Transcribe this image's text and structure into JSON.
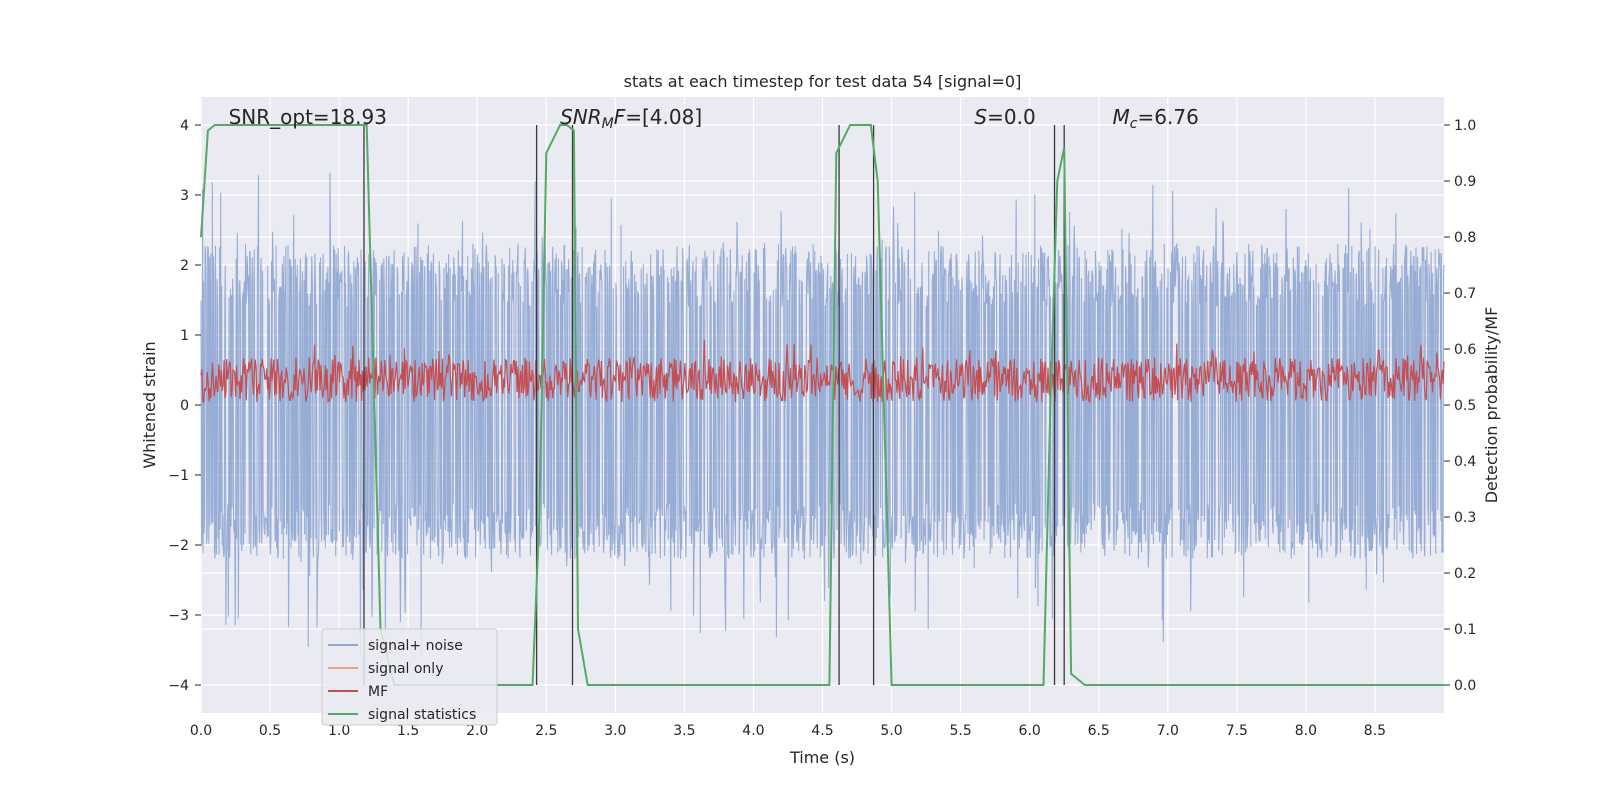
{
  "chart_data": {
    "type": "line",
    "title": "stats at each timestep for test data 54 [signal=0]",
    "xlabel": "Time (s)",
    "ylabel": "Whitened strain",
    "ylabel_right": "Detection probability/MF",
    "xlim": [
      0,
      9
    ],
    "ylim": [
      -4.4,
      4.4
    ],
    "ylim_right": [
      -0.05,
      1.05
    ],
    "x_ticks": [
      0.0,
      0.5,
      1.0,
      1.5,
      2.0,
      2.5,
      3.0,
      3.5,
      4.0,
      4.5,
      5.0,
      5.5,
      6.0,
      6.5,
      7.0,
      7.5,
      8.0,
      8.5
    ],
    "x_tick_labels": [
      "0.0",
      "0.5",
      "1.0",
      "1.5",
      "2.0",
      "2.5",
      "3.0",
      "3.5",
      "4.0",
      "4.5",
      "5.0",
      "5.5",
      "6.0",
      "6.5",
      "7.0",
      "7.5",
      "8.0",
      "8.5"
    ],
    "y_ticks": [
      -4,
      -3,
      -2,
      -1,
      0,
      1,
      2,
      3,
      4
    ],
    "y_tick_labels": [
      "−4",
      "−3",
      "−2",
      "−1",
      "0",
      "1",
      "2",
      "3",
      "4"
    ],
    "y_right_ticks": [
      0.0,
      0.1,
      0.2,
      0.3,
      0.4,
      0.5,
      0.6,
      0.7,
      0.8,
      0.9,
      1.0
    ],
    "y_right_tick_labels": [
      "0.0",
      "0.1",
      "0.2",
      "0.3",
      "0.4",
      "0.5",
      "0.6",
      "0.7",
      "0.8",
      "0.9",
      "1.0"
    ],
    "grid": true,
    "legend_position": "lower-left",
    "legend": [
      {
        "label": "signal+ noise",
        "color": "#8fa6d1"
      },
      {
        "label": "signal only",
        "color": "#e6a58a"
      },
      {
        "label": "MF",
        "color": "#c44e52"
      },
      {
        "label": "signal statistics",
        "color": "#55a868"
      }
    ],
    "annotations": [
      {
        "text": "SNR_opt=18.93",
        "x": 0.2
      },
      {
        "text": "SNR_MF=[4.08]",
        "x": 2.6
      },
      {
        "text": "S=0.0",
        "x": 5.6
      },
      {
        "text": "M_c=6.76",
        "x": 6.6
      }
    ],
    "series": [
      {
        "name": "signal+ noise",
        "color": "#8fa6d1",
        "description": "noise band",
        "envelope_upper_typical": 2.2,
        "envelope_lower_typical": -2.0,
        "peak_upper": 3.6,
        "peak_lower": -4.0
      },
      {
        "name": "MF",
        "color": "#c44e52",
        "axis": "right",
        "typical_range": [
          0.5,
          0.6
        ]
      },
      {
        "name": "signal statistics",
        "color": "#55a868",
        "axis": "right",
        "x": [
          0.0,
          0.05,
          0.1,
          0.2,
          1.15,
          1.2,
          1.3,
          1.4,
          2.4,
          2.45,
          2.5,
          2.6,
          2.65,
          2.7,
          2.73,
          2.8,
          2.9,
          4.55,
          4.6,
          4.7,
          4.85,
          4.9,
          5.0,
          5.1,
          6.1,
          6.15,
          6.2,
          6.25,
          6.3,
          6.4,
          9.0
        ],
        "y": [
          0.8,
          0.99,
          1.0,
          1.0,
          1.0,
          1.0,
          0.1,
          0.0,
          0.0,
          0.3,
          0.95,
          1.0,
          1.0,
          0.99,
          0.1,
          0.0,
          0.0,
          0.0,
          0.95,
          1.0,
          1.0,
          0.9,
          0.0,
          0.0,
          0.0,
          0.5,
          0.9,
          0.96,
          0.02,
          0.0,
          0.0
        ]
      }
    ],
    "vertical_markers": [
      1.18,
      2.43,
      2.69,
      4.62,
      4.87,
      6.18,
      6.25
    ]
  }
}
